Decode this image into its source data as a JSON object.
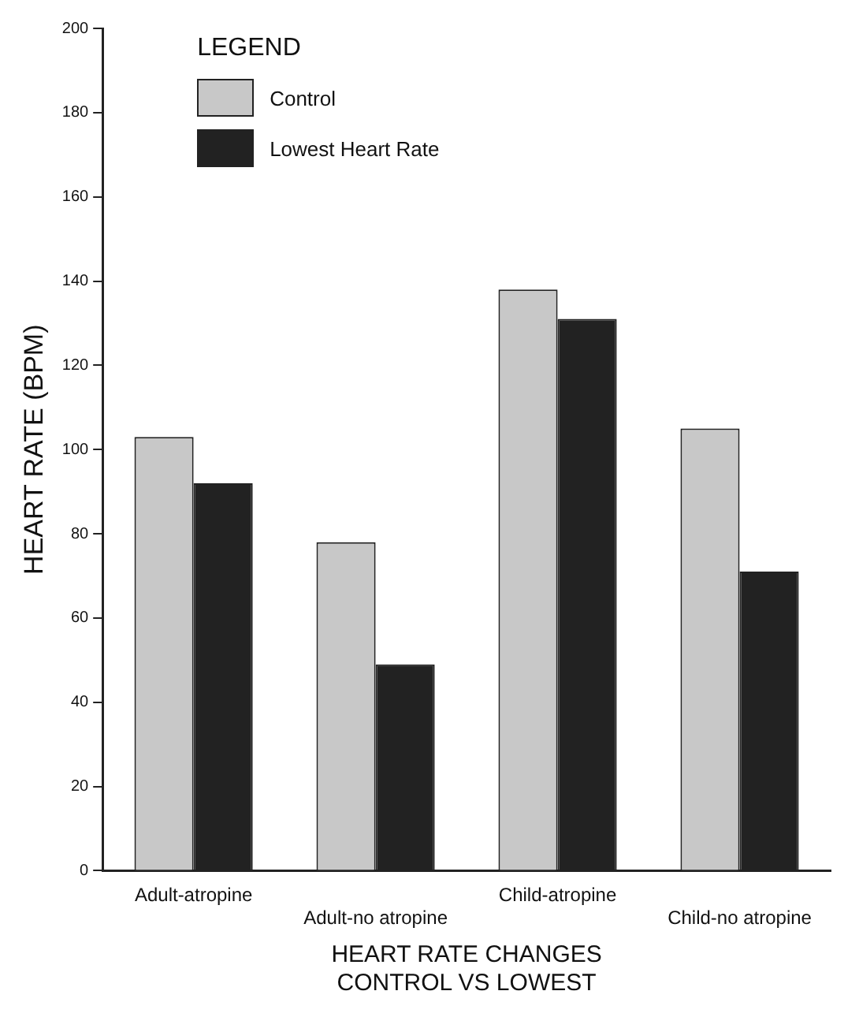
{
  "chart_data": {
    "type": "bar",
    "categories": [
      "Adult-atropine",
      "Adult-no atropine",
      "Child-atropine",
      "Child-no atropine"
    ],
    "series": [
      {
        "name": "Control",
        "color": "#c8c8c8",
        "values": [
          103,
          78,
          138,
          105
        ]
      },
      {
        "name": "Lowest Heart Rate",
        "color": "#222222",
        "values": [
          92,
          49,
          131,
          71
        ]
      }
    ],
    "ylim": [
      0,
      200
    ],
    "yticks": [
      0,
      20,
      40,
      60,
      80,
      100,
      120,
      140,
      160,
      180,
      200
    ],
    "ylabel": "HEART RATE (BPM)",
    "xlabel": "HEART RATE CHANGES\nCONTROL VS LOWEST",
    "legend": "top left",
    "legend_title": "LEGEND",
    "grid": false
  }
}
